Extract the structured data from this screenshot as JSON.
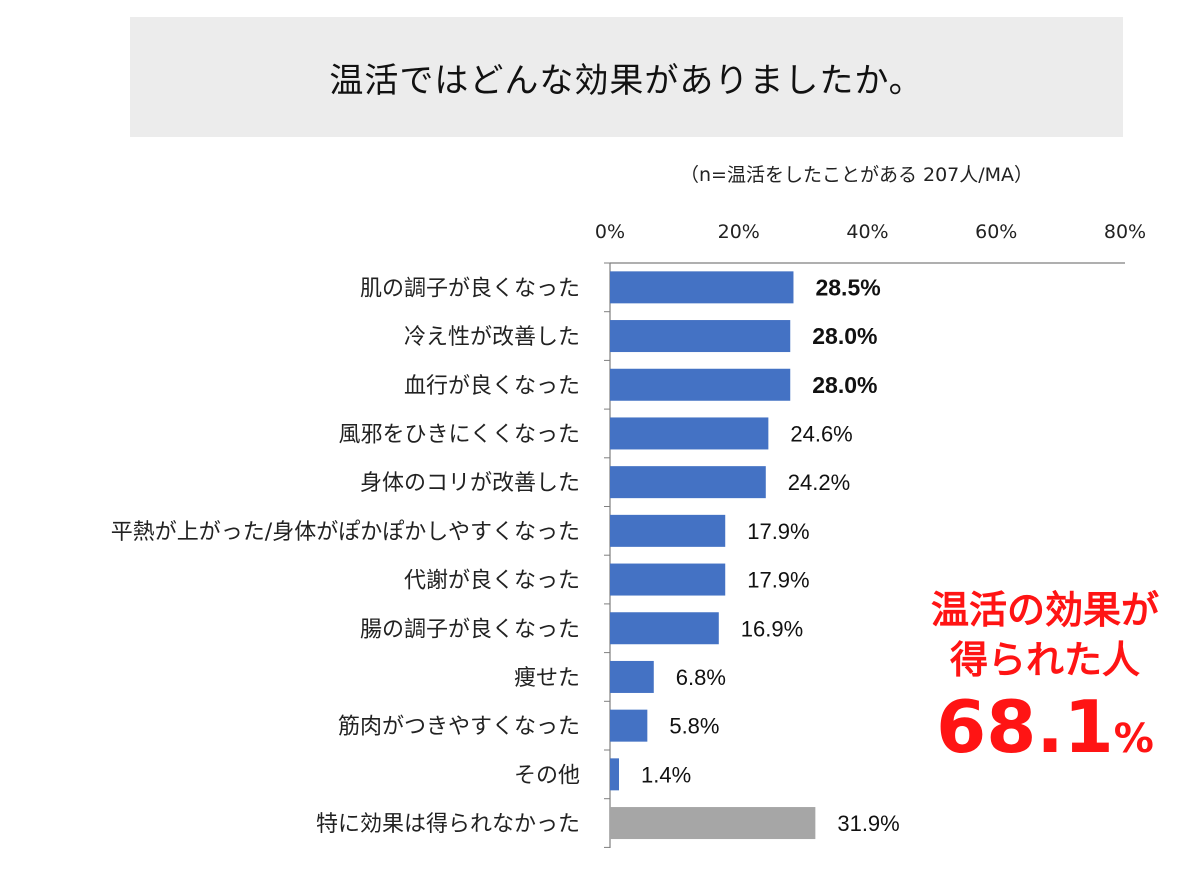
{
  "title": "温活ではどんな効果がありましたか。",
  "note": "（n=温活をしたことがある 207人/MA）",
  "callout": {
    "line1": "温活の効果が",
    "line2": "得られた人",
    "value": "68.1",
    "unit": "%"
  },
  "colors": {
    "bar": "#4472c4",
    "bar_none": "#a6a6a6",
    "callout": "#ff1414"
  },
  "chart_data": {
    "type": "bar",
    "orientation": "horizontal",
    "xlim": [
      0,
      80
    ],
    "ticks": [
      0,
      20,
      40,
      60,
      80
    ],
    "tick_labels": [
      "0%",
      "20%",
      "40%",
      "60%",
      "80%"
    ],
    "categories": [
      "肌の調子が良くなった",
      "冷え性が改善した",
      "血行が良くなった",
      "風邪をひきにくくなった",
      "身体のコリが改善した",
      "平熱が上がった/身体がぽかぽかしやすくなった",
      "代謝が良くなった",
      "腸の調子が良くなった",
      "痩せた",
      "筋肉がつきやすくなった",
      "その他",
      "特に効果は得られなかった"
    ],
    "values": [
      28.5,
      28.0,
      28.0,
      24.6,
      24.2,
      17.9,
      17.9,
      16.9,
      6.8,
      5.8,
      1.4,
      31.9
    ],
    "value_labels": [
      "28.5%",
      "28.0%",
      "28.0%",
      "24.6%",
      "24.2%",
      "17.9%",
      "17.9%",
      "16.9%",
      "6.8%",
      "5.8%",
      "1.4%",
      "31.9%"
    ],
    "bold_labels": [
      true,
      true,
      true,
      false,
      false,
      false,
      false,
      false,
      false,
      false,
      false,
      false
    ],
    "gray_bars": [
      false,
      false,
      false,
      false,
      false,
      false,
      false,
      false,
      false,
      false,
      false,
      true
    ]
  }
}
